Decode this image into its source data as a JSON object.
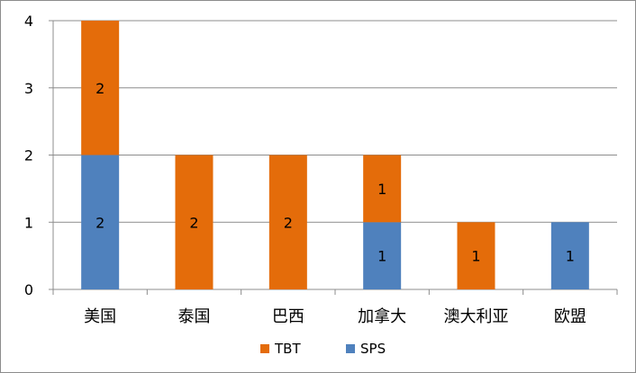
{
  "chart_data": {
    "type": "bar",
    "stacked": true,
    "categories": [
      "美国",
      "泰国",
      "巴西",
      "加拿大",
      "澳大利亚",
      "欧盟"
    ],
    "series": [
      {
        "name": "SPS",
        "values": [
          2,
          0,
          0,
          1,
          0,
          1
        ],
        "color": "#4f81bd"
      },
      {
        "name": "TBT",
        "values": [
          2,
          2,
          2,
          1,
          1,
          0
        ],
        "color": "#e46c0a"
      }
    ],
    "ylim": [
      0,
      4
    ],
    "yticks": [
      "0",
      "1",
      "2",
      "3",
      "4"
    ],
    "grid": true,
    "data_labels": true,
    "legend": {
      "position": "bottom",
      "order": [
        "TBT",
        "SPS"
      ]
    }
  }
}
